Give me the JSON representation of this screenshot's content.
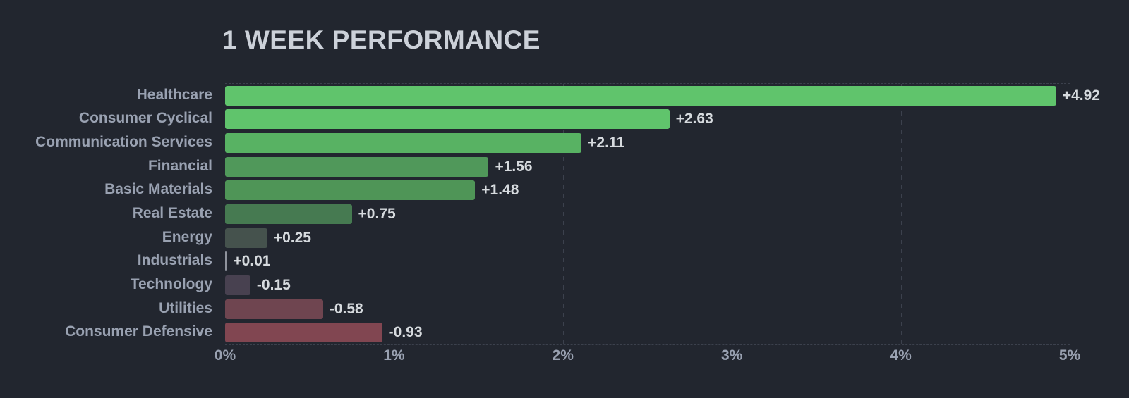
{
  "title": "1 WEEK PERFORMANCE",
  "chart_data": {
    "type": "bar",
    "orientation": "horizontal",
    "title": "1 WEEK PERFORMANCE",
    "xlabel": "",
    "ylabel": "",
    "xlim": [
      0,
      5
    ],
    "x_tick_labels": [
      "0%",
      "1%",
      "2%",
      "3%",
      "4%",
      "5%"
    ],
    "x_tick_values": [
      0,
      1,
      2,
      3,
      4,
      5
    ],
    "grid": "vertical-dashed",
    "categories": [
      "Healthcare",
      "Consumer Cyclical",
      "Communication Services",
      "Financial",
      "Basic Materials",
      "Real Estate",
      "Energy",
      "Industrials",
      "Technology",
      "Utilities",
      "Consumer Defensive"
    ],
    "values": [
      4.92,
      2.63,
      2.11,
      1.56,
      1.48,
      0.75,
      0.25,
      0.01,
      -0.15,
      -0.58,
      -0.93
    ],
    "value_labels": [
      "+4.92",
      "+2.63",
      "+2.11",
      "+1.56",
      "+1.48",
      "+0.75",
      "+0.25",
      "+0.01",
      "-0.15",
      "-0.58",
      "-0.93"
    ],
    "bar_colors": [
      "#60c46c",
      "#60c46c",
      "#58b263",
      "#50985a",
      "#4f9557",
      "#467a51",
      "#45524d",
      "#8f939c",
      "#484150",
      "#6f4550",
      "#814651"
    ]
  },
  "colors": {
    "background": "#22262f",
    "title_text": "#ccd1d9",
    "category_label_text": "#99a1b1",
    "value_label_text": "#d6dade",
    "axis_tick_text": "#99a1b1",
    "gridline": "#3c414d",
    "positive_strong": "#60c46c",
    "negative_strong": "#814651"
  }
}
